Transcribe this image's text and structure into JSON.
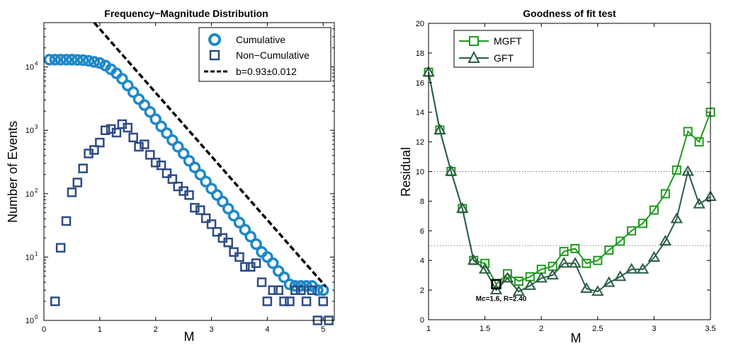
{
  "chart_data": [
    {
      "type": "scatter",
      "title": "Frequency−Magnitude Distribution",
      "xlabel": "M",
      "ylabel": "Number of Events",
      "xlim": [
        0,
        5.2
      ],
      "ylim": [
        1,
        50000
      ],
      "yscale": "log",
      "xticks": [
        "0",
        "1",
        "2",
        "3",
        "4",
        "5"
      ],
      "yticks": [
        {
          "base": "10",
          "exp": "0"
        },
        {
          "base": "10",
          "exp": "1"
        },
        {
          "base": "10",
          "exp": "2"
        },
        {
          "base": "10",
          "exp": "3"
        },
        {
          "base": "10",
          "exp": "4"
        }
      ],
      "legend_position": "top-right",
      "series": [
        {
          "name": "Cumulative",
          "marker": "circle",
          "color": "#1e88c7",
          "x": [
            0.1,
            0.2,
            0.3,
            0.4,
            0.5,
            0.6,
            0.7,
            0.8,
            0.9,
            1.0,
            1.1,
            1.2,
            1.3,
            1.4,
            1.5,
            1.6,
            1.7,
            1.8,
            1.9,
            2.0,
            2.1,
            2.2,
            2.3,
            2.4,
            2.5,
            2.6,
            2.7,
            2.8,
            2.9,
            3.0,
            3.1,
            3.2,
            3.3,
            3.4,
            3.5,
            3.6,
            3.7,
            3.8,
            3.9,
            4.0,
            4.1,
            4.2,
            4.3,
            4.4,
            4.5,
            4.6,
            4.7,
            4.8,
            4.9,
            5.0
          ],
          "y": [
            13000,
            13000,
            13000,
            13000,
            13000,
            12900,
            12800,
            12500,
            12000,
            11500,
            10500,
            9200,
            7900,
            6500,
            5100,
            4000,
            3100,
            2500,
            1950,
            1500,
            1150,
            900,
            700,
            550,
            430,
            330,
            260,
            200,
            155,
            120,
            95,
            75,
            58,
            45,
            35,
            27,
            21,
            16,
            12,
            10,
            8,
            6,
            4.8,
            3.7,
            3.5,
            3.5,
            3.5,
            3.5,
            3.0,
            3.0
          ]
        },
        {
          "name": "Non−Cumulative",
          "marker": "square",
          "color": "#2e4c86",
          "x": [
            0.2,
            0.3,
            0.4,
            0.5,
            0.6,
            0.7,
            0.8,
            0.9,
            1.0,
            1.1,
            1.2,
            1.3,
            1.4,
            1.5,
            1.6,
            1.7,
            1.8,
            1.9,
            2.0,
            2.1,
            2.2,
            2.3,
            2.4,
            2.5,
            2.6,
            2.7,
            2.8,
            2.9,
            3.0,
            3.1,
            3.2,
            3.3,
            3.4,
            3.5,
            3.6,
            3.7,
            3.8,
            3.9,
            4.0,
            4.1,
            4.2,
            4.3,
            4.4,
            4.5,
            4.6,
            4.7,
            4.8,
            4.9,
            5.0,
            5.1
          ],
          "y": [
            2,
            14,
            37,
            105,
            150,
            250,
            430,
            490,
            640,
            1000,
            1050,
            920,
            1250,
            1100,
            770,
            550,
            600,
            410,
            310,
            280,
            210,
            170,
            130,
            110,
            95,
            60,
            55,
            41,
            33,
            25,
            20,
            17,
            12,
            10,
            7,
            7,
            8,
            4,
            2,
            3,
            3,
            2,
            2,
            3,
            3,
            2,
            3,
            1,
            2,
            1
          ]
        },
        {
          "name": "b=0.93±0.012",
          "type": "line",
          "style": "dashed",
          "color": "#000000",
          "b": 0.93,
          "x": [
            0.9,
            5.05
          ],
          "y": [
            50000,
            3.4
          ]
        }
      ]
    },
    {
      "type": "line",
      "title": "Goodness of fit test",
      "xlabel": "M",
      "ylabel": "Residual",
      "xlim": [
        1,
        3.5
      ],
      "ylim": [
        0,
        20
      ],
      "xticks": [
        "1",
        "1.5",
        "2",
        "2.5",
        "3",
        "3.5"
      ],
      "yticks": [
        "0",
        "2",
        "4",
        "6",
        "8",
        "10",
        "12",
        "14",
        "16",
        "18",
        "20"
      ],
      "reference_lines_y": [
        5,
        10
      ],
      "legend_position": "top-left",
      "x": [
        1.0,
        1.1,
        1.2,
        1.3,
        1.4,
        1.5,
        1.6,
        1.7,
        1.8,
        1.9,
        2.0,
        2.1,
        2.2,
        2.3,
        2.4,
        2.5,
        2.6,
        2.7,
        2.8,
        2.9,
        3.0,
        3.1,
        3.2,
        3.3,
        3.4,
        3.5
      ],
      "series": [
        {
          "name": "MGFT",
          "marker": "square",
          "color": "#1f9a1f",
          "values": [
            16.7,
            12.8,
            10.0,
            7.5,
            4.0,
            3.8,
            2.4,
            3.1,
            2.6,
            2.9,
            3.4,
            3.6,
            4.6,
            4.8,
            3.8,
            4.0,
            4.7,
            5.3,
            6.0,
            6.5,
            7.4,
            8.5,
            10.1,
            12.7,
            12.0,
            14.0
          ]
        },
        {
          "name": "GFT",
          "marker": "triangle",
          "color": "#2a5e45",
          "values": [
            16.7,
            12.8,
            10.0,
            7.5,
            4.0,
            3.4,
            2.0,
            2.8,
            1.9,
            2.3,
            2.8,
            3.0,
            3.8,
            3.8,
            2.1,
            1.9,
            2.5,
            2.9,
            3.4,
            3.4,
            4.2,
            5.3,
            6.8,
            10.0,
            7.8,
            8.3
          ]
        }
      ],
      "highlight": {
        "x": 1.6,
        "y": 2.4,
        "label": "Mc=1.6, R=2.40"
      }
    }
  ]
}
